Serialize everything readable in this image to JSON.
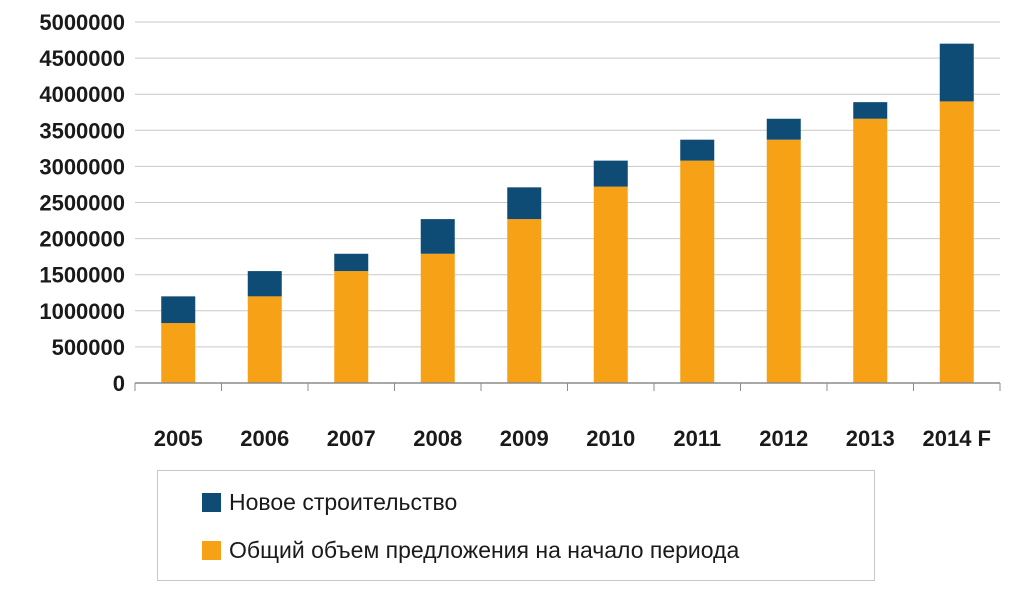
{
  "chart_data": {
    "type": "bar",
    "stacked": true,
    "categories": [
      "2005",
      "2006",
      "2007",
      "2008",
      "2009",
      "2010",
      "2011",
      "2012",
      "2013",
      "2014 F"
    ],
    "series": [
      {
        "name": "Общий объем предложения на начало периода",
        "color": "#f7a116",
        "values": [
          830000,
          1200000,
          1550000,
          1790000,
          2270000,
          2720000,
          3080000,
          3370000,
          3660000,
          3900000
        ]
      },
      {
        "name": "Новое строительство",
        "color": "#0f4c75",
        "values": [
          370000,
          350000,
          240000,
          480000,
          440000,
          360000,
          290000,
          290000,
          230000,
          800000
        ]
      }
    ],
    "yticks": [
      "0",
      "500000",
      "1000000",
      "1500000",
      "2000000",
      "2500000",
      "3000000",
      "3500000",
      "4000000",
      "4500000",
      "5000000"
    ],
    "ylim": [
      0,
      5000000
    ],
    "grid": true,
    "legend": "bottom"
  }
}
